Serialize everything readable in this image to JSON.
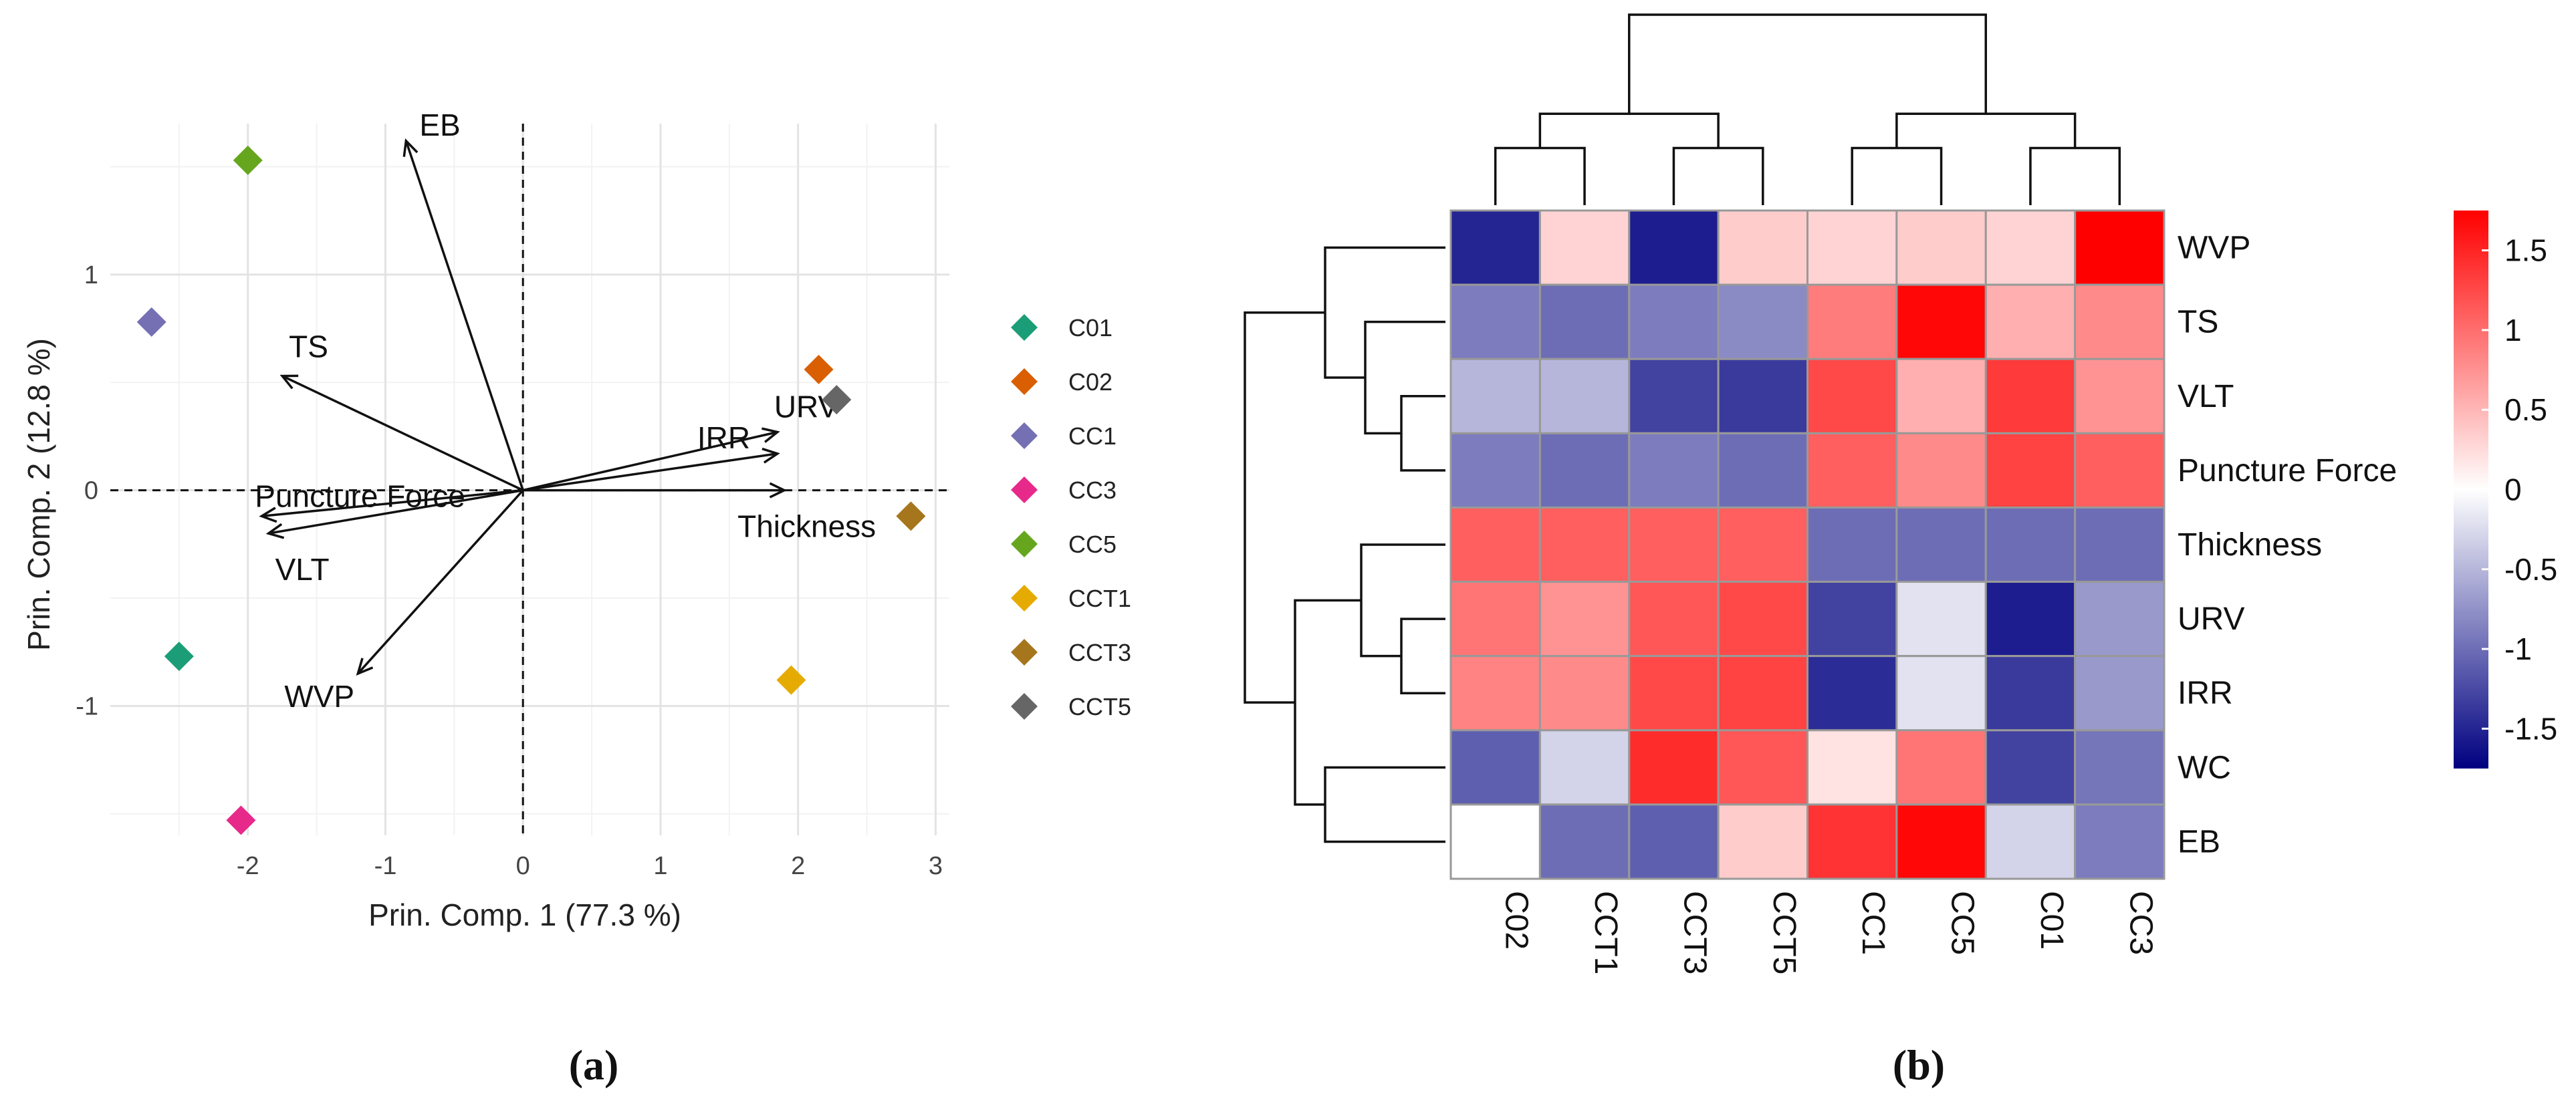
{
  "panels": {
    "a_label": "(a)",
    "b_label": "(b)"
  },
  "chart_data": [
    {
      "type": "scatter",
      "subtype": "pca-biplot",
      "xlabel": "Prin. Comp. 1 (77.3 %)",
      "ylabel": "Prin. Comp. 2 (12.8 %)",
      "xlim": [
        -3.0,
        3.1
      ],
      "ylim": [
        -1.6,
        1.7
      ],
      "xticks": [
        -2,
        -1,
        0,
        1,
        2,
        3
      ],
      "xtick_labels": [
        "-2",
        "-1",
        "0",
        "1",
        "2",
        "3"
      ],
      "yticks": [
        -1,
        0,
        1
      ],
      "ytick_labels": [
        "-1",
        "0",
        "1"
      ],
      "grid": true,
      "zero_lines": "dashed",
      "legend_position": "right",
      "points": [
        {
          "name": "C01",
          "x": -2.5,
          "y": -0.77,
          "color": "#1b9e77"
        },
        {
          "name": "C02",
          "x": 2.15,
          "y": 0.56,
          "color": "#d95f02"
        },
        {
          "name": "CC1",
          "x": -2.7,
          "y": 0.78,
          "color": "#7570b3"
        },
        {
          "name": "CC3",
          "x": -2.05,
          "y": -1.53,
          "color": "#e7298a"
        },
        {
          "name": "CC5",
          "x": -2.0,
          "y": 1.53,
          "color": "#66a61e"
        },
        {
          "name": "CCT1",
          "x": 1.95,
          "y": -0.88,
          "color": "#e6ab02"
        },
        {
          "name": "CCT3",
          "x": 2.82,
          "y": -0.12,
          "color": "#a6761d"
        },
        {
          "name": "CCT5",
          "x": 2.28,
          "y": 0.42,
          "color": "#666666"
        }
      ],
      "loadings": [
        {
          "name": "EB",
          "x": -0.85,
          "y": 1.62
        },
        {
          "name": "TS",
          "x": -1.75,
          "y": 0.53
        },
        {
          "name": "Puncture Force",
          "x": -1.9,
          "y": -0.12
        },
        {
          "name": "VLT",
          "x": -1.85,
          "y": -0.2
        },
        {
          "name": "WVP",
          "x": -1.2,
          "y": -0.85
        },
        {
          "name": "URV",
          "x": 1.85,
          "y": 0.27
        },
        {
          "name": "IRR",
          "x": 1.85,
          "y": 0.17
        },
        {
          "name": "Thickness",
          "x": 1.9,
          "y": 0.0
        }
      ]
    },
    {
      "type": "heatmap",
      "subtype": "clustered-heatmap",
      "columns": [
        "C02",
        "CCT1",
        "CCT3",
        "CCT5",
        "CC1",
        "CC5",
        "C01",
        "CC3"
      ],
      "rows": [
        "WVP",
        "TS",
        "VLT",
        "Puncture Force",
        "Thickness",
        "URV",
        "IRR",
        "WC",
        "EB"
      ],
      "values": [
        [
          -1.5,
          0.3,
          -1.55,
          0.35,
          0.3,
          0.35,
          0.3,
          1.75
        ],
        [
          -0.9,
          -1.0,
          -0.9,
          -0.8,
          0.9,
          1.7,
          0.55,
          0.8
        ],
        [
          -0.5,
          -0.5,
          -1.3,
          -1.35,
          1.25,
          0.55,
          1.35,
          0.75
        ],
        [
          -0.9,
          -1.0,
          -0.9,
          -1.0,
          1.1,
          0.8,
          1.3,
          1.1
        ],
        [
          1.1,
          1.1,
          1.1,
          1.1,
          -1.0,
          -1.0,
          -1.0,
          -1.0
        ],
        [
          0.95,
          0.75,
          1.15,
          1.25,
          -1.3,
          -0.2,
          -1.55,
          -0.7
        ],
        [
          0.85,
          0.8,
          1.25,
          1.3,
          -1.45,
          -0.2,
          -1.35,
          -0.7
        ],
        [
          -1.1,
          -0.3,
          1.45,
          1.15,
          0.2,
          0.95,
          -1.3,
          -0.95
        ],
        [
          0.0,
          -1.0,
          -1.1,
          0.35,
          1.4,
          1.7,
          -0.3,
          -0.9
        ]
      ],
      "color_scale": {
        "low": "#000080",
        "mid": "#ffffff",
        "high": "#ff0000",
        "min": -1.75,
        "max": 1.75
      },
      "colorbar_ticks": [
        1.5,
        1,
        0.5,
        0,
        -0.5,
        -1,
        -1.5
      ],
      "colorbar_tick_labels": [
        "1.5",
        "1",
        "0.5",
        "0",
        "-0.5",
        "-1",
        "-1.5"
      ],
      "row_dendrogram": [
        {
          "a": 2,
          "b": 3,
          "h": 0.22
        },
        {
          "a": 1,
          "b": "m0",
          "h": 0.4
        },
        {
          "a": 0,
          "b": "m1",
          "h": 0.6
        },
        {
          "a": 5,
          "b": 6,
          "h": 0.22
        },
        {
          "a": 4,
          "b": "m3",
          "h": 0.42
        },
        {
          "a": 7,
          "b": 8,
          "h": 0.6
        },
        {
          "a": "m4",
          "b": "m5",
          "h": 0.75
        },
        {
          "a": "m2",
          "b": "m6",
          "h": 1.0
        }
      ],
      "col_dendrogram": [
        {
          "a": 0,
          "b": 1,
          "h": 0.3
        },
        {
          "a": 2,
          "b": 3,
          "h": 0.3
        },
        {
          "a": "m0",
          "b": "m1",
          "h": 0.48
        },
        {
          "a": 4,
          "b": 5,
          "h": 0.3
        },
        {
          "a": 6,
          "b": 7,
          "h": 0.3
        },
        {
          "a": "m3",
          "b": "m4",
          "h": 0.48
        },
        {
          "a": "m2",
          "b": "m5",
          "h": 1.0
        }
      ]
    }
  ]
}
